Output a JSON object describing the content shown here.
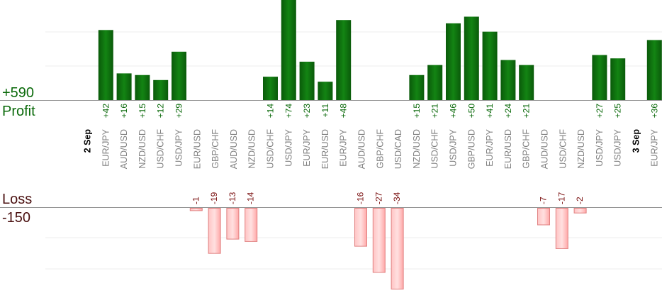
{
  "chart_data": {
    "type": "bar",
    "title": "",
    "xlabel": "",
    "ylabel": "",
    "grid": true,
    "legend": "none",
    "profit_label": "Profit",
    "loss_label": "Loss",
    "profit_total": "+590",
    "loss_total": "-150",
    "colors": {
      "profit": "#0e6b0e",
      "profit_text": "#0b6a0b",
      "loss": "#ffb0b0",
      "loss_text": "#7a1010",
      "loss_border": "#e08080"
    },
    "items": [
      {
        "kind": "date",
        "label": "2 Sep"
      },
      {
        "kind": "bar",
        "label": "EUR/JPY",
        "value": 42,
        "display": "+42"
      },
      {
        "kind": "bar",
        "label": "AUD/USD",
        "value": 16,
        "display": "+16"
      },
      {
        "kind": "bar",
        "label": "NZD/USD",
        "value": 15,
        "display": "+15"
      },
      {
        "kind": "bar",
        "label": "USD/CHF",
        "value": 12,
        "display": "+12"
      },
      {
        "kind": "bar",
        "label": "USD/JPY",
        "value": 29,
        "display": "+29"
      },
      {
        "kind": "bar",
        "label": "EUR/USD",
        "value": -1,
        "display": "-1"
      },
      {
        "kind": "bar",
        "label": "GBP/CHF",
        "value": -19,
        "display": "-19"
      },
      {
        "kind": "bar",
        "label": "AUD/USD",
        "value": -13,
        "display": "-13"
      },
      {
        "kind": "bar",
        "label": "NZD/USD",
        "value": -14,
        "display": "-14"
      },
      {
        "kind": "bar",
        "label": "USD/CHF",
        "value": 14,
        "display": "+14"
      },
      {
        "kind": "bar",
        "label": "USD/JPY",
        "value": 74,
        "display": "+74"
      },
      {
        "kind": "bar",
        "label": "EUR/JPY",
        "value": 23,
        "display": "+23"
      },
      {
        "kind": "bar",
        "label": "EUR/USD",
        "value": 11,
        "display": "+11"
      },
      {
        "kind": "bar",
        "label": "EUR/JPY",
        "value": 48,
        "display": "+48"
      },
      {
        "kind": "bar",
        "label": "AUD/USD",
        "value": -16,
        "display": "-16"
      },
      {
        "kind": "bar",
        "label": "GBP/CHF",
        "value": -27,
        "display": "-27"
      },
      {
        "kind": "bar",
        "label": "USD/CAD",
        "value": -34,
        "display": "-34"
      },
      {
        "kind": "bar",
        "label": "NZD/USD",
        "value": 15,
        "display": "+15"
      },
      {
        "kind": "bar",
        "label": "USD/CHF",
        "value": 21,
        "display": "+21"
      },
      {
        "kind": "bar",
        "label": "USD/JPY",
        "value": 46,
        "display": "+46"
      },
      {
        "kind": "bar",
        "label": "GBP/USD",
        "value": 50,
        "display": "+50"
      },
      {
        "kind": "bar",
        "label": "EUR/JPY",
        "value": 41,
        "display": "+41"
      },
      {
        "kind": "bar",
        "label": "EUR/USD",
        "value": 24,
        "display": "+24"
      },
      {
        "kind": "bar",
        "label": "GBP/CHF",
        "value": 21,
        "display": "+21"
      },
      {
        "kind": "bar",
        "label": "AUD/USD",
        "value": -7,
        "display": "-7"
      },
      {
        "kind": "bar",
        "label": "USD/CHF",
        "value": -17,
        "display": "-17"
      },
      {
        "kind": "bar",
        "label": "NZD/USD",
        "value": -2,
        "display": "-2"
      },
      {
        "kind": "bar",
        "label": "USD/JPY",
        "value": 27,
        "display": "+27"
      },
      {
        "kind": "bar",
        "label": "USD/JPY",
        "value": 25,
        "display": "+25"
      },
      {
        "kind": "date",
        "label": "3 Sep"
      },
      {
        "kind": "bar",
        "label": "EUR/JPY",
        "value": 36,
        "display": "+36"
      }
    ]
  }
}
